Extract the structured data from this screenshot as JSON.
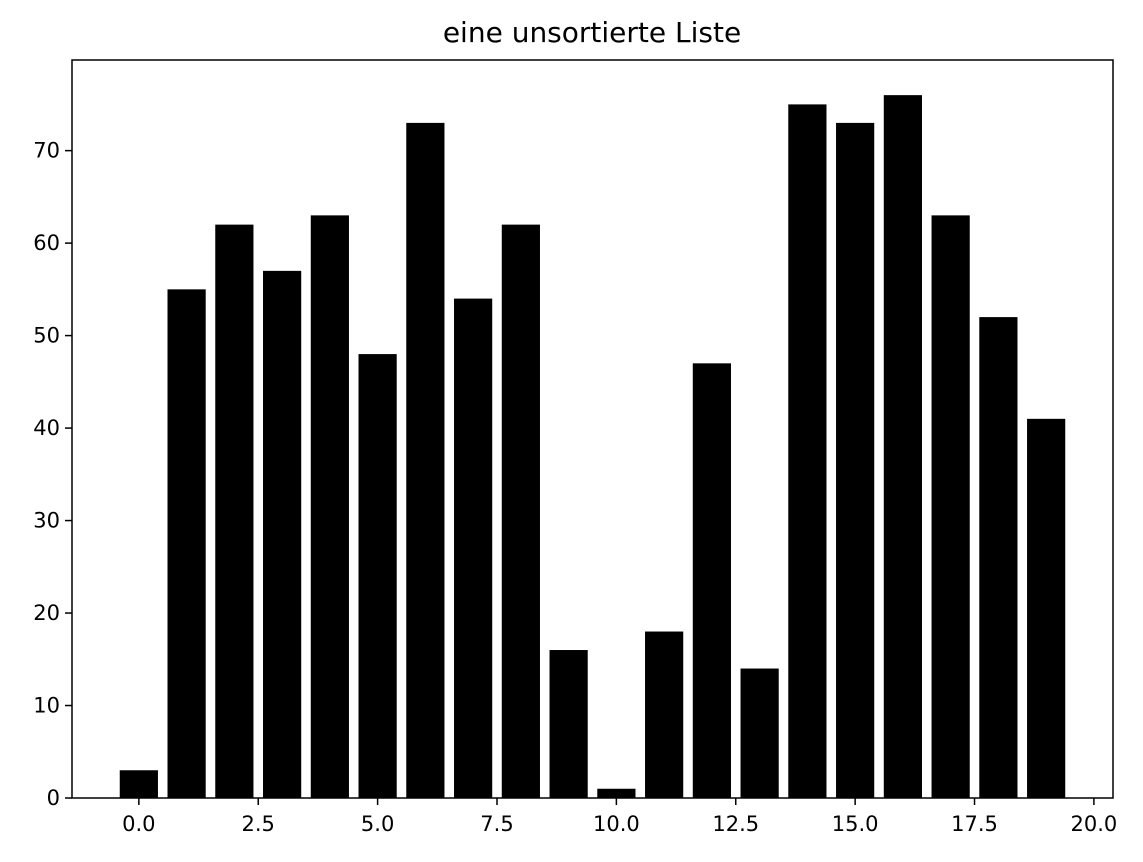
{
  "chart_data": {
    "type": "bar",
    "title": "eine unsortierte Liste",
    "xlabel": "",
    "ylabel": "",
    "x": [
      0,
      1,
      2,
      3,
      4,
      5,
      6,
      7,
      8,
      9,
      10,
      11,
      12,
      13,
      14,
      15,
      16,
      17,
      18,
      19
    ],
    "values": [
      3,
      55,
      62,
      57,
      63,
      48,
      73,
      54,
      62,
      16,
      1,
      18,
      47,
      14,
      75,
      73,
      76,
      63,
      52,
      41
    ],
    "bar_color": "#000000",
    "xlim": [
      -1.4,
      20.4
    ],
    "ylim": [
      0,
      79.8
    ],
    "x_ticks": [
      "0.0",
      "2.5",
      "5.0",
      "7.5",
      "10.0",
      "12.5",
      "15.0",
      "17.5",
      "20.0"
    ],
    "y_ticks": [
      "0",
      "10",
      "20",
      "30",
      "40",
      "50",
      "60",
      "70"
    ],
    "grid": false,
    "legend": "none"
  }
}
